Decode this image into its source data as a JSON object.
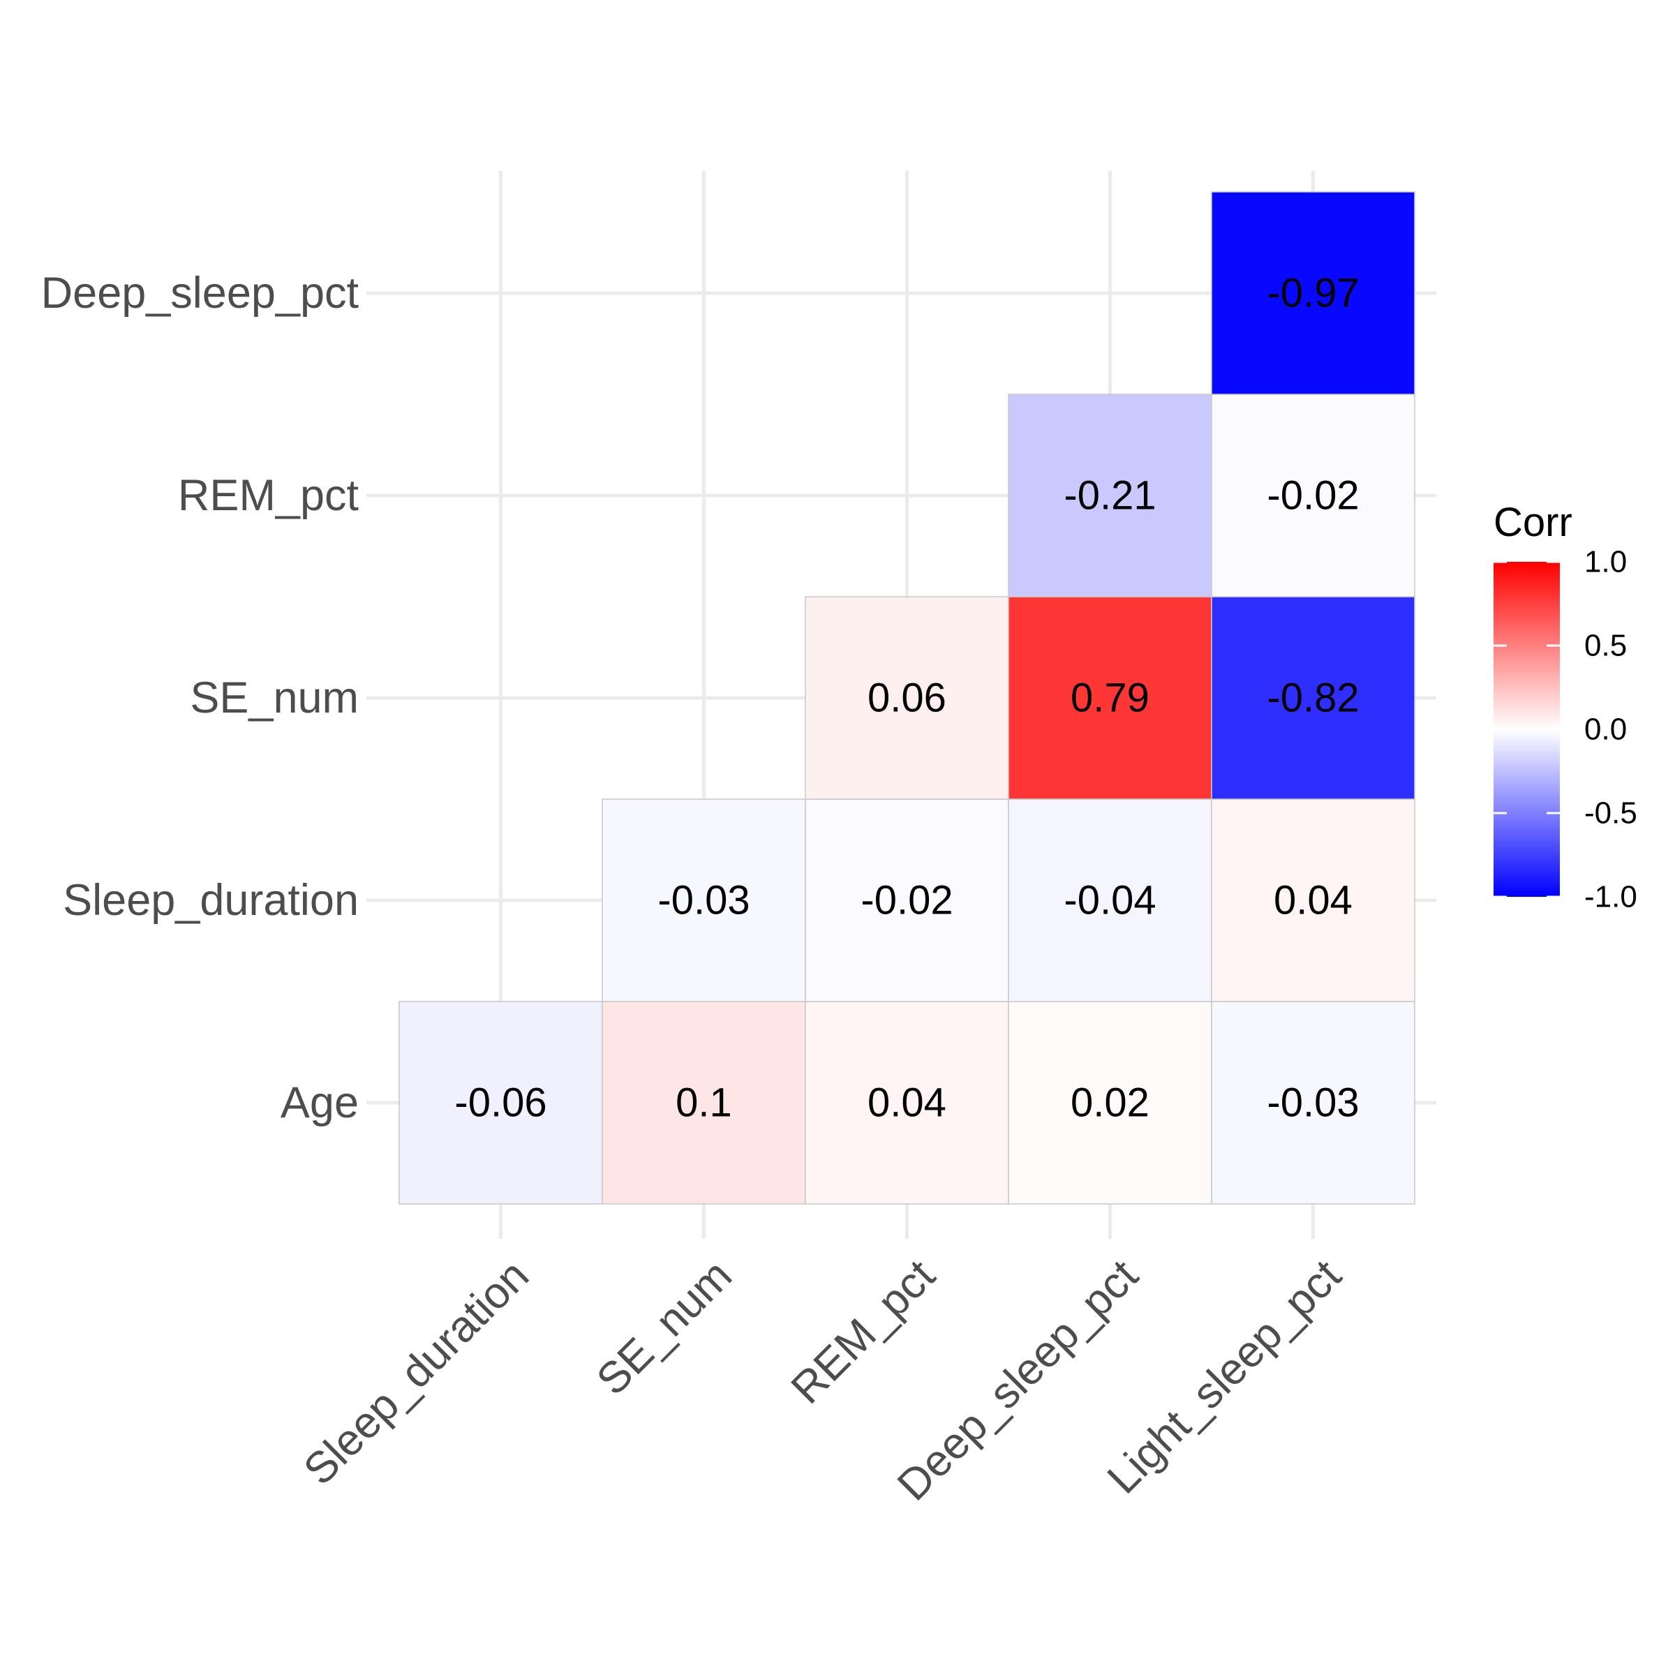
{
  "chart_data": {
    "type": "heatmap",
    "title": "",
    "xlabel": "",
    "ylabel": "",
    "x_categories": [
      "Sleep_duration",
      "SE_num",
      "REM_pct",
      "Deep_sleep_pct",
      "Light_sleep_pct"
    ],
    "y_categories": [
      "Age",
      "Sleep_duration",
      "SE_num",
      "REM_pct",
      "Deep_sleep_pct"
    ],
    "matrix": [
      [
        -0.06,
        0.1,
        0.04,
        0.02,
        -0.03
      ],
      [
        null,
        -0.03,
        -0.02,
        -0.04,
        0.04
      ],
      [
        null,
        null,
        0.06,
        0.79,
        -0.82
      ],
      [
        null,
        null,
        null,
        -0.21,
        -0.02
      ],
      [
        null,
        null,
        null,
        null,
        -0.97
      ]
    ],
    "cell_labels": [
      [
        "-0.06",
        "0.1",
        "0.04",
        "0.02",
        "-0.03"
      ],
      [
        null,
        "-0.03",
        "-0.02",
        "-0.04",
        "0.04"
      ],
      [
        null,
        null,
        "0.06",
        "0.79",
        "-0.82"
      ],
      [
        null,
        null,
        null,
        "-0.21",
        "-0.02"
      ],
      [
        null,
        null,
        null,
        null,
        "-0.97"
      ]
    ],
    "color_scale": {
      "low": "#0000ff",
      "mid": "#ffffff",
      "high": "#ff0000",
      "limits": [
        -1,
        1
      ]
    },
    "legend": {
      "title": "Corr",
      "placement": "right",
      "ticks": [
        1.0,
        0.5,
        0.0,
        -0.5,
        -1.0
      ],
      "tick_labels": [
        "1.0",
        "0.5",
        "0.0",
        "-0.5",
        "-1.0"
      ]
    },
    "grid": true
  }
}
